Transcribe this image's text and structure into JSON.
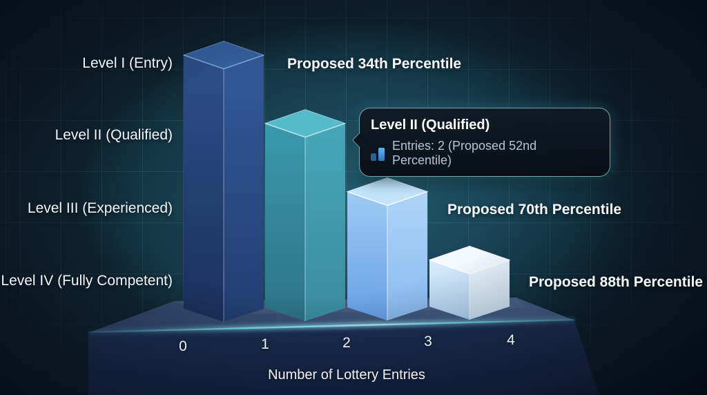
{
  "chart_data": {
    "type": "bar",
    "title": "",
    "xlabel": "Number of Lottery Entries",
    "x_ticks": [
      "0",
      "1",
      "2",
      "3",
      "4"
    ],
    "x_range": [
      0,
      4
    ],
    "grid": true,
    "bars": [
      {
        "label": "Level I (Entry)",
        "entries": 1,
        "proposed_percentile": 34,
        "annotation": "Proposed 34th Percentile"
      },
      {
        "label": "Level II (Qualified)",
        "entries": 2,
        "proposed_percentile": 52,
        "annotation": ""
      },
      {
        "label": "Level III (Experienced)",
        "entries": 3,
        "proposed_percentile": 70,
        "annotation": "Proposed 70th Percentile"
      },
      {
        "label": "Level IV (Fully Competent)",
        "entries": 4,
        "proposed_percentile": 88,
        "annotation": "Proposed 88th Percentile"
      }
    ],
    "bar_relative_heights": [
      66,
      48,
      30,
      12
    ]
  },
  "tooltip": {
    "title": "Level II (Qualified)",
    "text": "Entries: 2 (Proposed 52nd Percentile)",
    "icon": "bar-chart-icon"
  },
  "styles": {
    "accent_glow": "#7de5f7",
    "background_teal": "#2a7d8f",
    "bars": [
      {
        "left": [
          "#2d5089",
          "#1b2f5c"
        ],
        "right": [
          "#32599a",
          "#223e70"
        ],
        "top": "#35619f",
        "edge": "rgba(160,200,245,0.55)",
        "ridge": "rgba(190,216,250,0.45)"
      },
      {
        "left": [
          "#3a99ad",
          "#2d7287"
        ],
        "right": [
          "#47a6b9",
          "#3a8ba0"
        ],
        "top": "#55bac9",
        "edge": "rgba(215,248,252,0.60)",
        "ridge": "rgba(230,250,252,0.50)"
      },
      {
        "left": [
          "#9ecbf4",
          "#67a0e5"
        ],
        "right": [
          "#aed5f8",
          "#8abaef"
        ],
        "top": "#c3e4fb",
        "edge": "rgba(255,255,255,0.75)",
        "ridge": "rgba(255,255,255,0.60)"
      },
      {
        "left": [
          "#d7ebfb",
          "#b6d6f4"
        ],
        "right": [
          "#eaf5fe",
          "#d3e8fa"
        ],
        "top": "#f2f9ff",
        "edge": "rgba(255,255,255,0.85)",
        "ridge": "rgba(255,255,255,0.65)"
      }
    ],
    "platform": {
      "top": [
        "#2f4466",
        "#4a6389"
      ],
      "front": [
        "#1d3154",
        "#15284c"
      ],
      "glow": "#8aeafc"
    }
  }
}
